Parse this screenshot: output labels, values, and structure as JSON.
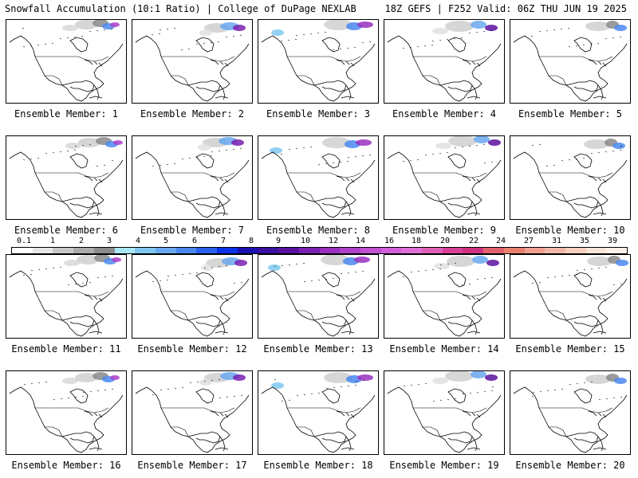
{
  "header": {
    "title_left": "Snowfall Accumulation (10:1 Ratio) | College of DuPage NEXLAB",
    "title_right": "18Z GEFS | F252 Valid: 06Z THU JUN 19 2025"
  },
  "panels": [
    {
      "label": "Ensemble Member: 1"
    },
    {
      "label": "Ensemble Member: 2"
    },
    {
      "label": "Ensemble Member: 3"
    },
    {
      "label": "Ensemble Member: 4"
    },
    {
      "label": "Ensemble Member: 5"
    },
    {
      "label": "Ensemble Member: 6"
    },
    {
      "label": "Ensemble Member: 7"
    },
    {
      "label": "Ensemble Member: 8"
    },
    {
      "label": "Ensemble Member: 9"
    },
    {
      "label": "Ensemble Member: 10"
    },
    {
      "label": "Ensemble Member: 11"
    },
    {
      "label": "Ensemble Member: 12"
    },
    {
      "label": "Ensemble Member: 13"
    },
    {
      "label": "Ensemble Member: 14"
    },
    {
      "label": "Ensemble Member: 15"
    },
    {
      "label": "Ensemble Member: 16"
    },
    {
      "label": "Ensemble Member: 17"
    },
    {
      "label": "Ensemble Member: 18"
    },
    {
      "label": "Ensemble Member: 19"
    },
    {
      "label": "Ensemble Member: 20"
    }
  ],
  "colorbar": {
    "labels": [
      "0.1",
      "1",
      "2",
      "3",
      "4",
      "5",
      "6",
      "7",
      "8",
      "9",
      "10",
      "12",
      "14",
      "16",
      "18",
      "20",
      "22",
      "24",
      "27",
      "31",
      "35",
      "39"
    ],
    "colors": [
      "#ffffff",
      "#e6e6e6",
      "#c8c8c8",
      "#aaaaaa",
      "#8c8c8c",
      "#a8e8f8",
      "#80c8f0",
      "#6aa8f0",
      "#4a88f0",
      "#2a60f0",
      "#0a30e8",
      "#1a10b0",
      "#3a10a0",
      "#5a10a0",
      "#7a20b0",
      "#9a30c0",
      "#b040c8",
      "#c050d0",
      "#d060d8",
      "#e070d8",
      "#e060b8",
      "#d84098",
      "#d03080",
      "#e06070",
      "#e88070",
      "#f0a090",
      "#f0b8a8",
      "#f8d0c0",
      "#f8e4d8",
      "#fcf0e8"
    ]
  }
}
